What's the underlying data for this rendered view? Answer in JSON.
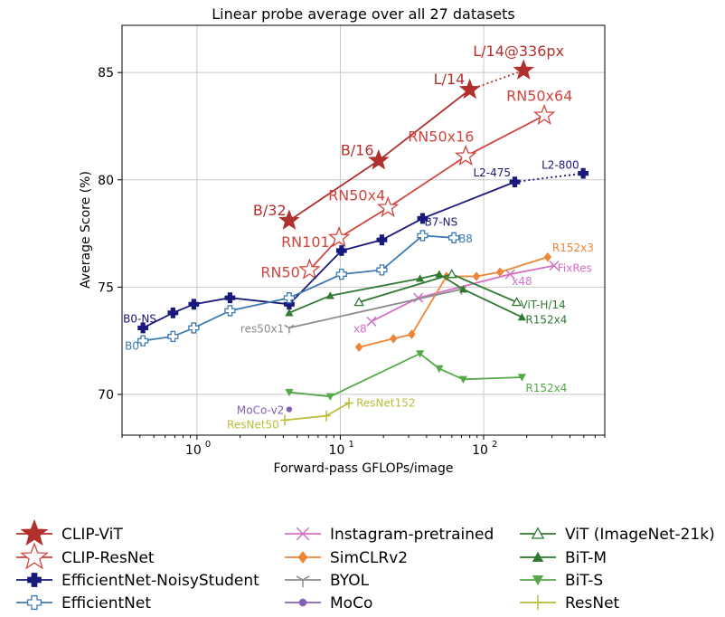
{
  "chart_data": {
    "type": "line",
    "title": "Linear probe average over all 27 datasets",
    "xlabel": "Forward-pass GFLOPs/image",
    "ylabel": "Average Score (%)",
    "xscale": "log",
    "xlim": [
      0.3,
      700
    ],
    "ylim": [
      68.1,
      87.2
    ],
    "grid": true,
    "legend_position": "bottom",
    "x_ticks": [
      {
        "value": 1,
        "base": "10",
        "exp": "0"
      },
      {
        "value": 10,
        "base": "10",
        "exp": "1"
      },
      {
        "value": 100,
        "base": "10",
        "exp": "2"
      }
    ],
    "y_ticks": [
      70,
      75,
      80,
      85
    ],
    "series": [
      {
        "name": "CLIP-ViT",
        "color": "#b0302d",
        "marker": "star-filled",
        "line": "solid",
        "points": [
          [
            4.4,
            78.1
          ],
          [
            18.5,
            80.9
          ],
          [
            80,
            84.2
          ]
        ],
        "extension": [
          [
            80,
            84.2
          ],
          [
            190,
            85.1
          ]
        ],
        "labels": [
          {
            "text": "B/32",
            "i": 0,
            "dx": -40,
            "dy": -6
          },
          {
            "text": "B/16",
            "i": 1,
            "dx": -42,
            "dy": -6
          },
          {
            "text": "L/14",
            "i": 2,
            "dx": -40,
            "dy": -6
          },
          {
            "text": "L/14@336px",
            "i": 3,
            "dx": -56,
            "dy": -16
          }
        ]
      },
      {
        "name": "CLIP-ResNet",
        "color": "#d0463f",
        "marker": "star-open",
        "line": "solid",
        "points": [
          [
            6.1,
            75.8
          ],
          [
            9.8,
            77.3
          ],
          [
            21.5,
            78.7
          ],
          [
            75,
            81.1
          ],
          [
            265,
            83.0
          ]
        ],
        "labels": [
          {
            "text": "RN50",
            "i": 0,
            "dx": -54,
            "dy": 8
          },
          {
            "text": "RN101",
            "i": 1,
            "dx": -64,
            "dy": 10
          },
          {
            "text": "RN50x4",
            "i": 2,
            "dx": -66,
            "dy": -8
          },
          {
            "text": "RN50x16",
            "i": 3,
            "dx": -64,
            "dy": -16
          },
          {
            "text": "RN50x64",
            "i": 4,
            "dx": -42,
            "dy": -16
          }
        ]
      },
      {
        "name": "EfficientNet-NoisyStudent",
        "color": "#18197a",
        "marker": "plus-filled",
        "line": "solid",
        "points": [
          [
            0.42,
            73.1
          ],
          [
            0.68,
            73.8
          ],
          [
            0.95,
            74.2
          ],
          [
            1.7,
            74.5
          ],
          [
            4.4,
            74.2
          ],
          [
            10.2,
            76.7
          ],
          [
            19.5,
            77.2
          ],
          [
            37.5,
            78.2
          ],
          [
            165,
            79.9
          ]
        ],
        "extension": [
          [
            165,
            79.9
          ],
          [
            495,
            80.3
          ]
        ],
        "labels": [
          {
            "text": "B0-NS",
            "i": 0,
            "dx": -22,
            "dy": -6
          },
          {
            "text": "B7-NS",
            "i": 7,
            "dx": 2,
            "dy": 8
          },
          {
            "text": "L2-475",
            "i": 8,
            "dx": -46,
            "dy": -6
          },
          {
            "text": "L2-800",
            "i": 9,
            "dx": -46,
            "dy": -5
          }
        ]
      },
      {
        "name": "EfficientNet",
        "color": "#3f7ab3",
        "marker": "plus-open",
        "line": "solid",
        "points": [
          [
            0.42,
            72.5
          ],
          [
            0.68,
            72.7
          ],
          [
            0.95,
            73.1
          ],
          [
            1.7,
            73.9
          ],
          [
            4.4,
            74.5
          ],
          [
            10.2,
            75.6
          ],
          [
            19.5,
            75.8
          ],
          [
            37.5,
            77.4
          ],
          [
            62,
            77.3
          ]
        ],
        "labels": [
          {
            "text": "B0",
            "i": 0,
            "dx": -20,
            "dy": 10
          },
          {
            "text": "B8",
            "i": 8,
            "dx": 5,
            "dy": 5
          }
        ]
      },
      {
        "name": "Instagram-pretrained",
        "color": "#d470c4",
        "marker": "x",
        "line": "solid",
        "points": [
          [
            16.5,
            73.4
          ],
          [
            35,
            74.5
          ],
          [
            153,
            75.6
          ],
          [
            310,
            76.0
          ]
        ],
        "labels": [
          {
            "text": "x8",
            "i": 0,
            "dx": -20,
            "dy": 12
          },
          {
            "text": "x48",
            "i": 2,
            "dx": 2,
            "dy": 12
          },
          {
            "text": "FixRes",
            "i": 3,
            "dx": 4,
            "dy": 7
          }
        ]
      },
      {
        "name": "SimCLRv2",
        "color": "#ef8536",
        "marker": "diamond",
        "line": "solid",
        "points": [
          [
            13.5,
            72.2
          ],
          [
            23.5,
            72.6
          ],
          [
            31.5,
            72.8
          ],
          [
            55,
            75.5
          ],
          [
            89,
            75.5
          ],
          [
            130,
            75.7
          ],
          [
            280,
            76.4
          ]
        ],
        "labels": [
          {
            "text": "R152x3",
            "i": 6,
            "dx": 5,
            "dy": -6
          }
        ]
      },
      {
        "name": "BYOL",
        "color": "#8c8c8c",
        "marker": "tri-down",
        "line": "solid",
        "points": [
          [
            4.4,
            73.1
          ],
          [
            70,
            74.9
          ]
        ],
        "labels": [
          {
            "text": "res50x1",
            "i": 0,
            "dx": -54,
            "dy": 5
          }
        ]
      },
      {
        "name": "MoCo",
        "color": "#8560b5",
        "marker": "circle",
        "line": "solid",
        "points": [
          [
            4.4,
            69.3
          ]
        ],
        "labels": [
          {
            "text": "MoCo-v2",
            "i": 0,
            "dx": -58,
            "dy": 5
          }
        ]
      },
      {
        "name": "ViT (ImageNet-21k)",
        "color": "#2f7a31",
        "marker": "triangle-open",
        "line": "solid",
        "points": [
          [
            13.5,
            74.3
          ],
          [
            60,
            75.6
          ],
          [
            170,
            74.3
          ]
        ],
        "labels": [
          {
            "text": "ViT-H/14",
            "i": 2,
            "dx": 4,
            "dy": 7
          }
        ]
      },
      {
        "name": "BiT-M",
        "color": "#2f7a31",
        "marker": "triangle-up",
        "line": "solid",
        "points": [
          [
            4.4,
            73.8
          ],
          [
            8.5,
            74.6
          ],
          [
            36,
            75.4
          ],
          [
            49,
            75.6
          ],
          [
            72,
            74.9
          ],
          [
            185,
            73.6
          ]
        ],
        "labels": [
          {
            "text": "R152x4",
            "i": 5,
            "dx": 4,
            "dy": 7
          }
        ]
      },
      {
        "name": "BiT-S",
        "color": "#56a84a",
        "marker": "triangle-down",
        "line": "solid",
        "points": [
          [
            4.4,
            70.1
          ],
          [
            8.5,
            69.9
          ],
          [
            36,
            71.9
          ],
          [
            49,
            71.2
          ],
          [
            72,
            70.7
          ],
          [
            185,
            70.8
          ]
        ],
        "labels": [
          {
            "text": "R152x4",
            "i": 5,
            "dx": 4,
            "dy": 16
          }
        ]
      },
      {
        "name": "ResNet",
        "color": "#bcbc3c",
        "marker": "vline",
        "line": "solid",
        "points": [
          [
            4.1,
            68.8
          ],
          [
            8.0,
            69.0
          ],
          [
            11.5,
            69.6
          ]
        ],
        "labels": [
          {
            "text": "ResNet50",
            "i": 0,
            "dx": -64,
            "dy": 9
          },
          {
            "text": "ResNet152",
            "i": 2,
            "dx": 8,
            "dy": 4
          }
        ]
      }
    ]
  },
  "legend": {
    "columns": [
      [
        "CLIP-ViT",
        "CLIP-ResNet",
        "EfficientNet-NoisyStudent",
        "EfficientNet"
      ],
      [
        "Instagram-pretrained",
        "SimCLRv2",
        "BYOL",
        "MoCo"
      ],
      [
        "ViT (ImageNet-21k)",
        "BiT-M",
        "BiT-S",
        "ResNet"
      ]
    ]
  }
}
